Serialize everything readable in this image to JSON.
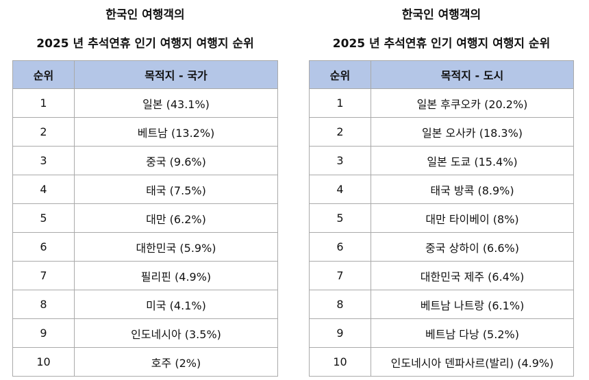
{
  "left": {
    "title_line1": "한국인 여행객의",
    "title_line2": "2025 년 추석연휴 인기 여행지 여행지 순위",
    "headers": [
      "순위",
      "목적지 - 국가"
    ],
    "rows": [
      {
        "rank": "1",
        "dest": "일본 (43.1%)"
      },
      {
        "rank": "2",
        "dest": "베트남 (13.2%)"
      },
      {
        "rank": "3",
        "dest": "중국 (9.6%)"
      },
      {
        "rank": "4",
        "dest": "태국 (7.5%)"
      },
      {
        "rank": "5",
        "dest": "대만 (6.2%)"
      },
      {
        "rank": "6",
        "dest": "대한민국 (5.9%)"
      },
      {
        "rank": "7",
        "dest": "필리핀 (4.9%)"
      },
      {
        "rank": "8",
        "dest": "미국 (4.1%)"
      },
      {
        "rank": "9",
        "dest": "인도네시아 (3.5%)"
      },
      {
        "rank": "10",
        "dest": "호주 (2%)"
      }
    ]
  },
  "right": {
    "title_line1": "한국인 여행객의",
    "title_line2": "2025 년 추석연휴 인기 여행지 여행지 순위",
    "headers": [
      "순위",
      "목적지 - 도시"
    ],
    "rows": [
      {
        "rank": "1",
        "dest": "일본 후쿠오카 (20.2%)"
      },
      {
        "rank": "2",
        "dest": "일본 오사카 (18.3%)"
      },
      {
        "rank": "3",
        "dest": "일본 도쿄 (15.4%)"
      },
      {
        "rank": "4",
        "dest": "태국 방콕 (8.9%)"
      },
      {
        "rank": "5",
        "dest": "대만 타이베이 (8%)"
      },
      {
        "rank": "6",
        "dest": "중국 상하이 (6.6%)"
      },
      {
        "rank": "7",
        "dest": "대한민국 제주 (6.4%)"
      },
      {
        "rank": "8",
        "dest": "베트남 나트랑 (6.1%)"
      },
      {
        "rank": "9",
        "dest": "베트남 다낭 (5.2%)"
      },
      {
        "rank": "10",
        "dest": "인도네시아 덴파사르(발리) (4.9%)"
      }
    ]
  },
  "colors": {
    "header_bg": "#b4c6e7",
    "border": "#a9a9a9"
  }
}
